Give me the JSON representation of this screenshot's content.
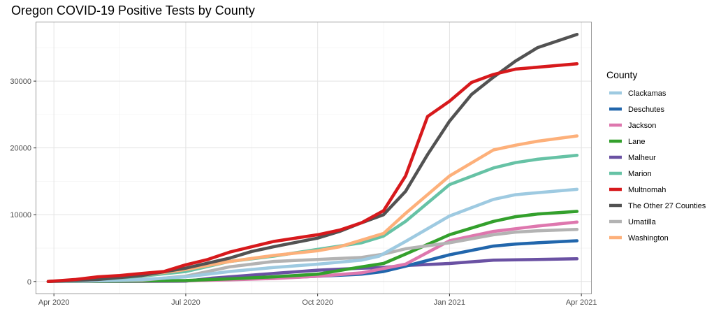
{
  "chart_data": {
    "type": "line",
    "title": "Oregon COVID-19 Positive Tests by County",
    "xlabel": "",
    "ylabel": "",
    "x_ticks": [
      {
        "label": "Apr 2020",
        "t": 1
      },
      {
        "label": "Jul 2020",
        "t": 4
      },
      {
        "label": "Oct 2020",
        "t": 7
      },
      {
        "label": "Jan 2021",
        "t": 10
      },
      {
        "label": "Apr 2021",
        "t": 13
      }
    ],
    "y_ticks": [
      0,
      10000,
      20000,
      30000
    ],
    "xlim": [
      0.6,
      13.22
    ],
    "ylim": [
      -1800,
      38800
    ],
    "grid": true,
    "legend_title": "County",
    "legend_position": "right",
    "series": [
      {
        "name": "Clackamas",
        "color": "#9ECAE1",
        "points": [
          [
            0.87,
            0
          ],
          [
            2,
            100
          ],
          [
            3,
            300
          ],
          [
            3.5,
            500
          ],
          [
            4,
            700
          ],
          [
            5,
            1500
          ],
          [
            6,
            2100
          ],
          [
            7,
            2600
          ],
          [
            8,
            3200
          ],
          [
            8.4,
            3800
          ],
          [
            9,
            6000
          ],
          [
            10,
            9800
          ],
          [
            11,
            12300
          ],
          [
            11.5,
            13000
          ],
          [
            12,
            13300
          ],
          [
            12.9,
            13800
          ]
        ]
      },
      {
        "name": "Deschutes",
        "color": "#2166AC",
        "points": [
          [
            0.87,
            0
          ],
          [
            3,
            50
          ],
          [
            4,
            100
          ],
          [
            5,
            300
          ],
          [
            6,
            500
          ],
          [
            7,
            800
          ],
          [
            8,
            1100
          ],
          [
            8.5,
            1500
          ],
          [
            9,
            2300
          ],
          [
            10,
            4000
          ],
          [
            11,
            5300
          ],
          [
            11.5,
            5600
          ],
          [
            12,
            5800
          ],
          [
            12.9,
            6100
          ]
        ]
      },
      {
        "name": "Jackson",
        "color": "#DE77AE",
        "points": [
          [
            0.87,
            0
          ],
          [
            3,
            50
          ],
          [
            4,
            100
          ],
          [
            5,
            250
          ],
          [
            6,
            450
          ],
          [
            7,
            800
          ],
          [
            8,
            1300
          ],
          [
            9,
            2600
          ],
          [
            10,
            6100
          ],
          [
            11,
            7500
          ],
          [
            11.5,
            7900
          ],
          [
            12,
            8300
          ],
          [
            12.9,
            8900
          ]
        ]
      },
      {
        "name": "Lane",
        "color": "#33A02C",
        "points": [
          [
            0.87,
            0
          ],
          [
            3,
            80
          ],
          [
            4,
            150
          ],
          [
            5,
            400
          ],
          [
            6,
            700
          ],
          [
            7,
            1100
          ],
          [
            8,
            2200
          ],
          [
            8.5,
            2700
          ],
          [
            9,
            4100
          ],
          [
            10,
            7000
          ],
          [
            11,
            9000
          ],
          [
            11.5,
            9700
          ],
          [
            12,
            10100
          ],
          [
            12.9,
            10500
          ]
        ]
      },
      {
        "name": "Malheur",
        "color": "#6A51A3",
        "points": [
          [
            0.87,
            0
          ],
          [
            3,
            20
          ],
          [
            4,
            50
          ],
          [
            4.6,
            500
          ],
          [
            5,
            700
          ],
          [
            6,
            1200
          ],
          [
            7,
            1700
          ],
          [
            8,
            2000
          ],
          [
            8.5,
            2100
          ],
          [
            9,
            2400
          ],
          [
            10,
            2700
          ],
          [
            11,
            3200
          ],
          [
            12,
            3300
          ],
          [
            12.9,
            3400
          ]
        ]
      },
      {
        "name": "Marion",
        "color": "#66C2A5",
        "points": [
          [
            0.87,
            0
          ],
          [
            2,
            300
          ],
          [
            3,
            800
          ],
          [
            4,
            1500
          ],
          [
            5,
            3000
          ],
          [
            6,
            3800
          ],
          [
            7,
            4800
          ],
          [
            8,
            5800
          ],
          [
            8.5,
            6800
          ],
          [
            9,
            9000
          ],
          [
            10,
            14500
          ],
          [
            11,
            17000
          ],
          [
            11.5,
            17800
          ],
          [
            12,
            18300
          ],
          [
            12.9,
            18900
          ]
        ]
      },
      {
        "name": "Multnomah",
        "color": "#D7191C",
        "points": [
          [
            0.87,
            0
          ],
          [
            1.5,
            300
          ],
          [
            2,
            700
          ],
          [
            2.5,
            900
          ],
          [
            3,
            1200
          ],
          [
            3.5,
            1500
          ],
          [
            4,
            2500
          ],
          [
            4.5,
            3300
          ],
          [
            5,
            4400
          ],
          [
            5.5,
            5200
          ],
          [
            6,
            6000
          ],
          [
            7,
            7000
          ],
          [
            7.5,
            7700
          ],
          [
            8,
            8800
          ],
          [
            8.5,
            10600
          ],
          [
            9,
            15800
          ],
          [
            9.5,
            24700
          ],
          [
            10,
            27000
          ],
          [
            10.5,
            29800
          ],
          [
            11,
            31000
          ],
          [
            11.5,
            31800
          ],
          [
            12.9,
            32600
          ]
        ]
      },
      {
        "name": "The Other 27 Counties",
        "color": "#525252",
        "points": [
          [
            0.87,
            0
          ],
          [
            2,
            300
          ],
          [
            3,
            900
          ],
          [
            4,
            2000
          ],
          [
            5,
            3500
          ],
          [
            5.5,
            4500
          ],
          [
            6,
            5200
          ],
          [
            7,
            6500
          ],
          [
            7.5,
            7500
          ],
          [
            8,
            8800
          ],
          [
            8.5,
            10000
          ],
          [
            9,
            13500
          ],
          [
            9.5,
            19000
          ],
          [
            10,
            24000
          ],
          [
            10.5,
            28000
          ],
          [
            11,
            30600
          ],
          [
            11.5,
            33000
          ],
          [
            12,
            35000
          ],
          [
            12.9,
            37000
          ]
        ]
      },
      {
        "name": "Umatilla",
        "color": "#B3B3B3",
        "points": [
          [
            0.87,
            0
          ],
          [
            3,
            200
          ],
          [
            4,
            800
          ],
          [
            5,
            2200
          ],
          [
            6,
            3000
          ],
          [
            7,
            3300
          ],
          [
            8,
            3600
          ],
          [
            8.5,
            4100
          ],
          [
            9,
            4900
          ],
          [
            10,
            5800
          ],
          [
            11,
            7000
          ],
          [
            11.5,
            7400
          ],
          [
            12,
            7600
          ],
          [
            12.9,
            7800
          ]
        ]
      },
      {
        "name": "Washington",
        "color": "#FDB07A",
        "points": [
          [
            0.87,
            0
          ],
          [
            2,
            400
          ],
          [
            3,
            900
          ],
          [
            4,
            1800
          ],
          [
            5,
            3000
          ],
          [
            6,
            3900
          ],
          [
            7,
            4600
          ],
          [
            7.5,
            5200
          ],
          [
            8,
            6200
          ],
          [
            8.5,
            7200
          ],
          [
            9,
            10200
          ],
          [
            10,
            15800
          ],
          [
            11,
            19700
          ],
          [
            11.5,
            20400
          ],
          [
            12,
            21000
          ],
          [
            12.9,
            21800
          ]
        ]
      }
    ]
  }
}
